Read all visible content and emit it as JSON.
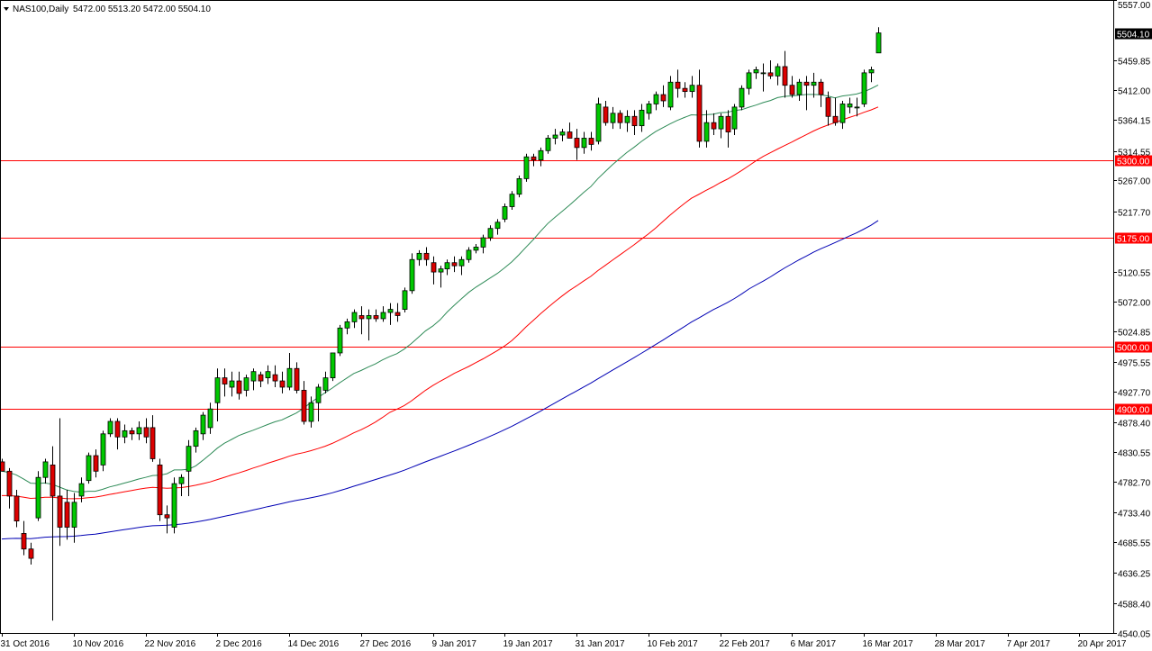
{
  "header": {
    "symbol": "NAS100,Daily",
    "ohlc": "5472.00 5513.20 5472.00 5504.10"
  },
  "chart_data": {
    "type": "candlestick",
    "symbol": "NAS100",
    "timeframe": "Daily",
    "ylim": [
      4540.05,
      5557.0
    ],
    "y_ticks": [
      "5557.00",
      "5504.10",
      "5459.85",
      "5412.00",
      "5364.15",
      "5314.55",
      "5300.00",
      "5267.00",
      "5217.70",
      "5175.00",
      "5120.55",
      "5072.00",
      "5024.85",
      "5000.00",
      "4975.55",
      "4927.70",
      "4900.00",
      "4878.40",
      "4830.55",
      "4782.70",
      "4733.40",
      "4685.55",
      "4636.25",
      "4588.40",
      "4540.05"
    ],
    "x_labels": [
      "31 Oct 2016",
      "10 Nov 2016",
      "22 Nov 2016",
      "2 Dec 2016",
      "14 Dec 2016",
      "27 Dec 2016",
      "9 Jan 2017",
      "19 Jan 2017",
      "31 Jan 2017",
      "10 Feb 2017",
      "22 Feb 2017",
      "6 Mar 2017",
      "16 Mar 2017",
      "28 Mar 2017",
      "7 Apr 2017",
      "20 Apr 2017"
    ],
    "x_label_index": [
      0,
      10,
      20,
      30,
      40,
      50,
      60,
      70,
      80,
      90,
      100,
      110,
      120,
      130,
      140,
      150
    ],
    "current_price": "5504.10",
    "levels": [
      {
        "price": 5300.0,
        "label": "5300.00",
        "color": "#ff0000"
      },
      {
        "price": 5175.0,
        "label": "5175.00",
        "color": "#ff0000"
      },
      {
        "price": 5000.0,
        "label": "5000.00",
        "color": "#ff0000"
      },
      {
        "price": 4900.0,
        "label": "4900.00",
        "color": "#ff0000"
      }
    ],
    "colors": {
      "bull": "#00c800",
      "bear": "#dc0000",
      "wick": "#000000",
      "ma_fast": "#2e8b57",
      "ma_mid": "#ff0000",
      "ma_slow": "#0000b4",
      "grid": false
    },
    "candles": [
      {
        "o": 4815,
        "h": 4820,
        "l": 4800,
        "c": 4800
      },
      {
        "o": 4800,
        "h": 4805,
        "l": 4740,
        "c": 4760
      },
      {
        "o": 4760,
        "h": 4770,
        "l": 4710,
        "c": 4720
      },
      {
        "o": 4700,
        "h": 4720,
        "l": 4665,
        "c": 4675
      },
      {
        "o": 4675,
        "h": 4685,
        "l": 4650,
        "c": 4660
      },
      {
        "o": 4725,
        "h": 4800,
        "l": 4720,
        "c": 4790
      },
      {
        "o": 4790,
        "h": 4820,
        "l": 4780,
        "c": 4815
      },
      {
        "o": 4810,
        "h": 4840,
        "l": 4560,
        "c": 4760
      },
      {
        "o": 4760,
        "h": 4885,
        "l": 4680,
        "c": 4710
      },
      {
        "o": 4750,
        "h": 4770,
        "l": 4690,
        "c": 4710
      },
      {
        "o": 4710,
        "h": 4765,
        "l": 4685,
        "c": 4750
      },
      {
        "o": 4760,
        "h": 4790,
        "l": 4750,
        "c": 4780
      },
      {
        "o": 4785,
        "h": 4830,
        "l": 4780,
        "c": 4825
      },
      {
        "o": 4825,
        "h": 4835,
        "l": 4790,
        "c": 4800
      },
      {
        "o": 4810,
        "h": 4865,
        "l": 4800,
        "c": 4860
      },
      {
        "o": 4860,
        "h": 4885,
        "l": 4855,
        "c": 4880
      },
      {
        "o": 4880,
        "h": 4885,
        "l": 4835,
        "c": 4855
      },
      {
        "o": 4855,
        "h": 4875,
        "l": 4845,
        "c": 4865
      },
      {
        "o": 4865,
        "h": 4870,
        "l": 4850,
        "c": 4860
      },
      {
        "o": 4860,
        "h": 4880,
        "l": 4850,
        "c": 4870
      },
      {
        "o": 4870,
        "h": 4885,
        "l": 4845,
        "c": 4855
      },
      {
        "o": 4870,
        "h": 4890,
        "l": 4815,
        "c": 4820
      },
      {
        "o": 4810,
        "h": 4820,
        "l": 4720,
        "c": 4730
      },
      {
        "o": 4730,
        "h": 4745,
        "l": 4700,
        "c": 4725
      },
      {
        "o": 4710,
        "h": 4790,
        "l": 4700,
        "c": 4780
      },
      {
        "o": 4780,
        "h": 4795,
        "l": 4760,
        "c": 4790
      },
      {
        "o": 4800,
        "h": 4850,
        "l": 4760,
        "c": 4840
      },
      {
        "o": 4840,
        "h": 4870,
        "l": 4830,
        "c": 4865
      },
      {
        "o": 4860,
        "h": 4895,
        "l": 4850,
        "c": 4890
      },
      {
        "o": 4870,
        "h": 4910,
        "l": 4860,
        "c": 4900
      },
      {
        "o": 4910,
        "h": 4965,
        "l": 4880,
        "c": 4950
      },
      {
        "o": 4950,
        "h": 4965,
        "l": 4920,
        "c": 4940
      },
      {
        "o": 4935,
        "h": 4960,
        "l": 4920,
        "c": 4945
      },
      {
        "o": 4945,
        "h": 4960,
        "l": 4915,
        "c": 4925
      },
      {
        "o": 4930,
        "h": 4955,
        "l": 4920,
        "c": 4950
      },
      {
        "o": 4945,
        "h": 4965,
        "l": 4930,
        "c": 4960
      },
      {
        "o": 4955,
        "h": 4960,
        "l": 4935,
        "c": 4945
      },
      {
        "o": 4950,
        "h": 4970,
        "l": 4940,
        "c": 4960
      },
      {
        "o": 4955,
        "h": 4970,
        "l": 4935,
        "c": 4945
      },
      {
        "o": 4945,
        "h": 4960,
        "l": 4925,
        "c": 4935
      },
      {
        "o": 4935,
        "h": 4990,
        "l": 4930,
        "c": 4965
      },
      {
        "o": 4965,
        "h": 4975,
        "l": 4925,
        "c": 4930
      },
      {
        "o": 4930,
        "h": 4945,
        "l": 4875,
        "c": 4880
      },
      {
        "o": 4880,
        "h": 4920,
        "l": 4870,
        "c": 4910
      },
      {
        "o": 4910,
        "h": 4940,
        "l": 4880,
        "c": 4935
      },
      {
        "o": 4930,
        "h": 4960,
        "l": 4925,
        "c": 4950
      },
      {
        "o": 4950,
        "h": 4990,
        "l": 4945,
        "c": 4990
      },
      {
        "o": 4990,
        "h": 5035,
        "l": 4985,
        "c": 5030
      },
      {
        "o": 5030,
        "h": 5045,
        "l": 5020,
        "c": 5040
      },
      {
        "o": 5040,
        "h": 5060,
        "l": 5030,
        "c": 5055
      },
      {
        "o": 5050,
        "h": 5065,
        "l": 5020,
        "c": 5045
      },
      {
        "o": 5045,
        "h": 5060,
        "l": 5010,
        "c": 5050
      },
      {
        "o": 5050,
        "h": 5060,
        "l": 5040,
        "c": 5045
      },
      {
        "o": 5045,
        "h": 5065,
        "l": 5040,
        "c": 5055
      },
      {
        "o": 5055,
        "h": 5070,
        "l": 5035,
        "c": 5060
      },
      {
        "o": 5055,
        "h": 5070,
        "l": 5040,
        "c": 5050
      },
      {
        "o": 5060,
        "h": 5095,
        "l": 5055,
        "c": 5090
      },
      {
        "o": 5090,
        "h": 5150,
        "l": 5085,
        "c": 5140
      },
      {
        "o": 5140,
        "h": 5155,
        "l": 5130,
        "c": 5150
      },
      {
        "o": 5150,
        "h": 5160,
        "l": 5130,
        "c": 5140
      },
      {
        "o": 5135,
        "h": 5145,
        "l": 5100,
        "c": 5120
      },
      {
        "o": 5120,
        "h": 5130,
        "l": 5095,
        "c": 5125
      },
      {
        "o": 5125,
        "h": 5140,
        "l": 5115,
        "c": 5135
      },
      {
        "o": 5135,
        "h": 5145,
        "l": 5120,
        "c": 5130
      },
      {
        "o": 5130,
        "h": 5145,
        "l": 5115,
        "c": 5140
      },
      {
        "o": 5140,
        "h": 5160,
        "l": 5135,
        "c": 5155
      },
      {
        "o": 5155,
        "h": 5165,
        "l": 5150,
        "c": 5160
      },
      {
        "o": 5160,
        "h": 5180,
        "l": 5150,
        "c": 5175
      },
      {
        "o": 5175,
        "h": 5195,
        "l": 5170,
        "c": 5190
      },
      {
        "o": 5190,
        "h": 5205,
        "l": 5180,
        "c": 5200
      },
      {
        "o": 5205,
        "h": 5230,
        "l": 5200,
        "c": 5225
      },
      {
        "o": 5225,
        "h": 5250,
        "l": 5220,
        "c": 5245
      },
      {
        "o": 5245,
        "h": 5275,
        "l": 5240,
        "c": 5270
      },
      {
        "o": 5270,
        "h": 5310,
        "l": 5265,
        "c": 5305
      },
      {
        "o": 5305,
        "h": 5310,
        "l": 5290,
        "c": 5300
      },
      {
        "o": 5300,
        "h": 5320,
        "l": 5290,
        "c": 5315
      },
      {
        "o": 5315,
        "h": 5340,
        "l": 5310,
        "c": 5335
      },
      {
        "o": 5335,
        "h": 5350,
        "l": 5325,
        "c": 5340
      },
      {
        "o": 5340,
        "h": 5350,
        "l": 5330,
        "c": 5345
      },
      {
        "o": 5345,
        "h": 5360,
        "l": 5335,
        "c": 5335
      },
      {
        "o": 5335,
        "h": 5350,
        "l": 5300,
        "c": 5320
      },
      {
        "o": 5320,
        "h": 5345,
        "l": 5310,
        "c": 5335
      },
      {
        "o": 5335,
        "h": 5345,
        "l": 5315,
        "c": 5325
      },
      {
        "o": 5330,
        "h": 5400,
        "l": 5325,
        "c": 5390
      },
      {
        "o": 5385,
        "h": 5395,
        "l": 5355,
        "c": 5360
      },
      {
        "o": 5360,
        "h": 5385,
        "l": 5350,
        "c": 5375
      },
      {
        "o": 5375,
        "h": 5380,
        "l": 5350,
        "c": 5360
      },
      {
        "o": 5360,
        "h": 5380,
        "l": 5345,
        "c": 5370
      },
      {
        "o": 5370,
        "h": 5380,
        "l": 5340,
        "c": 5355
      },
      {
        "o": 5355,
        "h": 5390,
        "l": 5345,
        "c": 5380
      },
      {
        "o": 5375,
        "h": 5395,
        "l": 5365,
        "c": 5390
      },
      {
        "o": 5390,
        "h": 5410,
        "l": 5380,
        "c": 5405
      },
      {
        "o": 5405,
        "h": 5420,
        "l": 5385,
        "c": 5395
      },
      {
        "o": 5385,
        "h": 5435,
        "l": 5380,
        "c": 5425
      },
      {
        "o": 5425,
        "h": 5445,
        "l": 5400,
        "c": 5415
      },
      {
        "o": 5415,
        "h": 5425,
        "l": 5400,
        "c": 5410
      },
      {
        "o": 5410,
        "h": 5435,
        "l": 5400,
        "c": 5420
      },
      {
        "o": 5420,
        "h": 5445,
        "l": 5320,
        "c": 5330
      },
      {
        "o": 5330,
        "h": 5380,
        "l": 5320,
        "c": 5360
      },
      {
        "o": 5360,
        "h": 5375,
        "l": 5340,
        "c": 5350
      },
      {
        "o": 5350,
        "h": 5375,
        "l": 5335,
        "c": 5370
      },
      {
        "o": 5370,
        "h": 5380,
        "l": 5320,
        "c": 5345
      },
      {
        "o": 5350,
        "h": 5390,
        "l": 5340,
        "c": 5385
      },
      {
        "o": 5385,
        "h": 5420,
        "l": 5380,
        "c": 5415
      },
      {
        "o": 5415,
        "h": 5445,
        "l": 5405,
        "c": 5440
      },
      {
        "o": 5440,
        "h": 5450,
        "l": 5430,
        "c": 5445
      },
      {
        "o": 5440,
        "h": 5455,
        "l": 5410,
        "c": 5440
      },
      {
        "o": 5440,
        "h": 5460,
        "l": 5430,
        "c": 5435
      },
      {
        "o": 5435,
        "h": 5455,
        "l": 5420,
        "c": 5450
      },
      {
        "o": 5450,
        "h": 5475,
        "l": 5400,
        "c": 5420
      },
      {
        "o": 5420,
        "h": 5435,
        "l": 5400,
        "c": 5405
      },
      {
        "o": 5405,
        "h": 5430,
        "l": 5395,
        "c": 5425
      },
      {
        "o": 5425,
        "h": 5435,
        "l": 5380,
        "c": 5420
      },
      {
        "o": 5420,
        "h": 5440,
        "l": 5400,
        "c": 5425
      },
      {
        "o": 5425,
        "h": 5430,
        "l": 5385,
        "c": 5405
      },
      {
        "o": 5400,
        "h": 5410,
        "l": 5355,
        "c": 5370
      },
      {
        "o": 5370,
        "h": 5400,
        "l": 5355,
        "c": 5360
      },
      {
        "o": 5360,
        "h": 5395,
        "l": 5350,
        "c": 5390
      },
      {
        "o": 5385,
        "h": 5400,
        "l": 5375,
        "c": 5390
      },
      {
        "o": 5385,
        "h": 5400,
        "l": 5370,
        "c": 5385
      },
      {
        "o": 5390,
        "h": 5445,
        "l": 5385,
        "c": 5440
      },
      {
        "o": 5440,
        "h": 5450,
        "l": 5425,
        "c": 5445
      },
      {
        "o": 5472,
        "h": 5513.2,
        "l": 5472,
        "c": 5504.1
      }
    ]
  }
}
